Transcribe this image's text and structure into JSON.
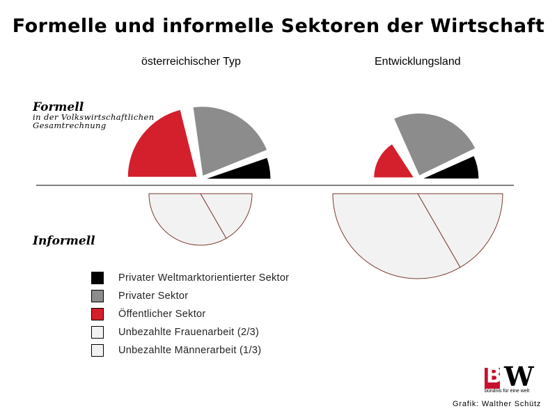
{
  "title": "Formelle und informelle Sektoren der Wirtschaft",
  "left_label": {
    "big": "Formell",
    "line1": "in der Volkswirtschaftlichen",
    "line2": "Gesamtrechnung"
  },
  "informell_label": "Informell",
  "credit": "Grafik: Walther Schütz",
  "logo": {
    "letters_b": "B",
    "letters_w": "W",
    "small": "öW",
    "tagline": "bündnis für eine welt"
  },
  "colors": {
    "private_world": "#000000",
    "private": "#8c8c8c",
    "public": "#d41f2c",
    "unpaid_women": "#f2f2f2",
    "unpaid_men": "#f2f2f2",
    "outline": "#7a3b2e",
    "divider": "#000000"
  },
  "chart_data": {
    "type": "pie",
    "style": "exploded half-pies above and below a dividing line",
    "legend": [
      {
        "key": "private_world",
        "label": "Privater Weltmarktorientierter Sektor"
      },
      {
        "key": "private",
        "label": "Privater Sektor"
      },
      {
        "key": "public",
        "label": "Öffentlicher Sektor"
      },
      {
        "key": "unpaid_women",
        "label": "Unbezahlte Frauenarbeit (2/3)"
      },
      {
        "key": "unpaid_men",
        "label": "Unbezahlte Männerarbeit (1/3)"
      }
    ],
    "groups": [
      {
        "name": "österreichischer Typ",
        "formal": [
          {
            "key": "public",
            "radius": 1.0,
            "start_deg": 180,
            "end_deg": 256,
            "explode": 0.06
          },
          {
            "key": "private",
            "radius": 1.0,
            "start_deg": 262,
            "end_deg": 338,
            "explode": 0.06
          },
          {
            "key": "private_world",
            "radius": 0.95,
            "start_deg": 341,
            "end_deg": 360,
            "explode": 0.06
          }
        ],
        "informal": [
          {
            "key": "unpaid_women",
            "radius": 0.74,
            "start_deg": 60,
            "end_deg": 180
          },
          {
            "key": "unpaid_men",
            "radius": 0.74,
            "start_deg": 0,
            "end_deg": 60
          }
        ]
      },
      {
        "name": "Entwicklungsland",
        "formal": [
          {
            "key": "public",
            "radius": 0.58,
            "start_deg": 180,
            "end_deg": 237,
            "explode": 0.06
          },
          {
            "key": "private",
            "radius": 0.9,
            "start_deg": 246,
            "end_deg": 334,
            "explode": 0.06
          },
          {
            "key": "private_world",
            "radius": 0.82,
            "start_deg": 336,
            "end_deg": 360,
            "explode": 0.06
          }
        ],
        "informal": [
          {
            "key": "unpaid_women",
            "radius": 1.0,
            "start_deg": 60,
            "end_deg": 180
          },
          {
            "key": "unpaid_men",
            "radius": 1.0,
            "start_deg": 0,
            "end_deg": 60
          }
        ]
      }
    ]
  }
}
